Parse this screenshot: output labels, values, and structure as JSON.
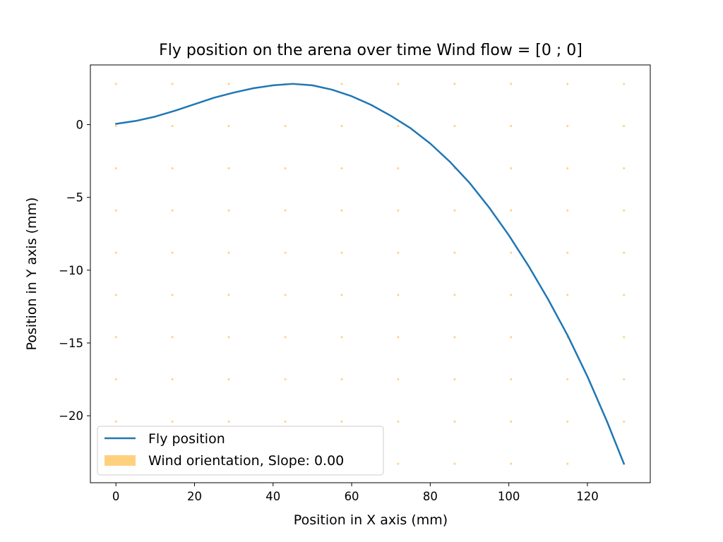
{
  "chart_data": {
    "type": "line",
    "title": "Fly position on the arena over time Wind flow = [0 ; 0]",
    "xlabel": "Position in X axis (mm)",
    "ylabel": "Position in Y axis (mm)",
    "xlim": [
      -6.5,
      136
    ],
    "ylim": [
      -24.6,
      4.1
    ],
    "xticks": [
      0,
      20,
      40,
      60,
      80,
      100,
      120
    ],
    "yticks": [
      0,
      -5,
      -10,
      -15,
      -20
    ],
    "xtick_labels": [
      "0",
      "20",
      "40",
      "60",
      "80",
      "100",
      "120"
    ],
    "ytick_labels": [
      "0",
      "−5",
      "−10",
      "−15",
      "−20"
    ],
    "grid": false,
    "legend_position": "lower-left",
    "series": [
      {
        "name": "Fly position",
        "color": "#1f77b4",
        "x": [
          0,
          5,
          10,
          15,
          20,
          25,
          30,
          35,
          40,
          45,
          50,
          55,
          60,
          65,
          70,
          75,
          80,
          85,
          90,
          95,
          100,
          105,
          110,
          115,
          120,
          125,
          129.3
        ],
        "y": [
          0.05,
          0.25,
          0.55,
          0.95,
          1.4,
          1.85,
          2.2,
          2.5,
          2.7,
          2.8,
          2.7,
          2.4,
          1.95,
          1.35,
          0.6,
          -0.25,
          -1.3,
          -2.55,
          -4.0,
          -5.7,
          -7.6,
          -9.7,
          -12.0,
          -14.5,
          -17.3,
          -20.4,
          -23.3
        ]
      }
    ],
    "wind_field": {
      "name": "Wind orientation, Slope: 0.00",
      "color": "#ffd17f",
      "x": [
        0,
        14.37,
        28.73,
        43.1,
        57.47,
        71.83,
        86.2,
        100.57,
        114.93,
        129.3
      ],
      "y": [
        2.8,
        -0.1,
        -3.0,
        -5.9,
        -8.8,
        -11.7,
        -14.6,
        -17.5,
        -20.4,
        -23.3
      ]
    }
  }
}
